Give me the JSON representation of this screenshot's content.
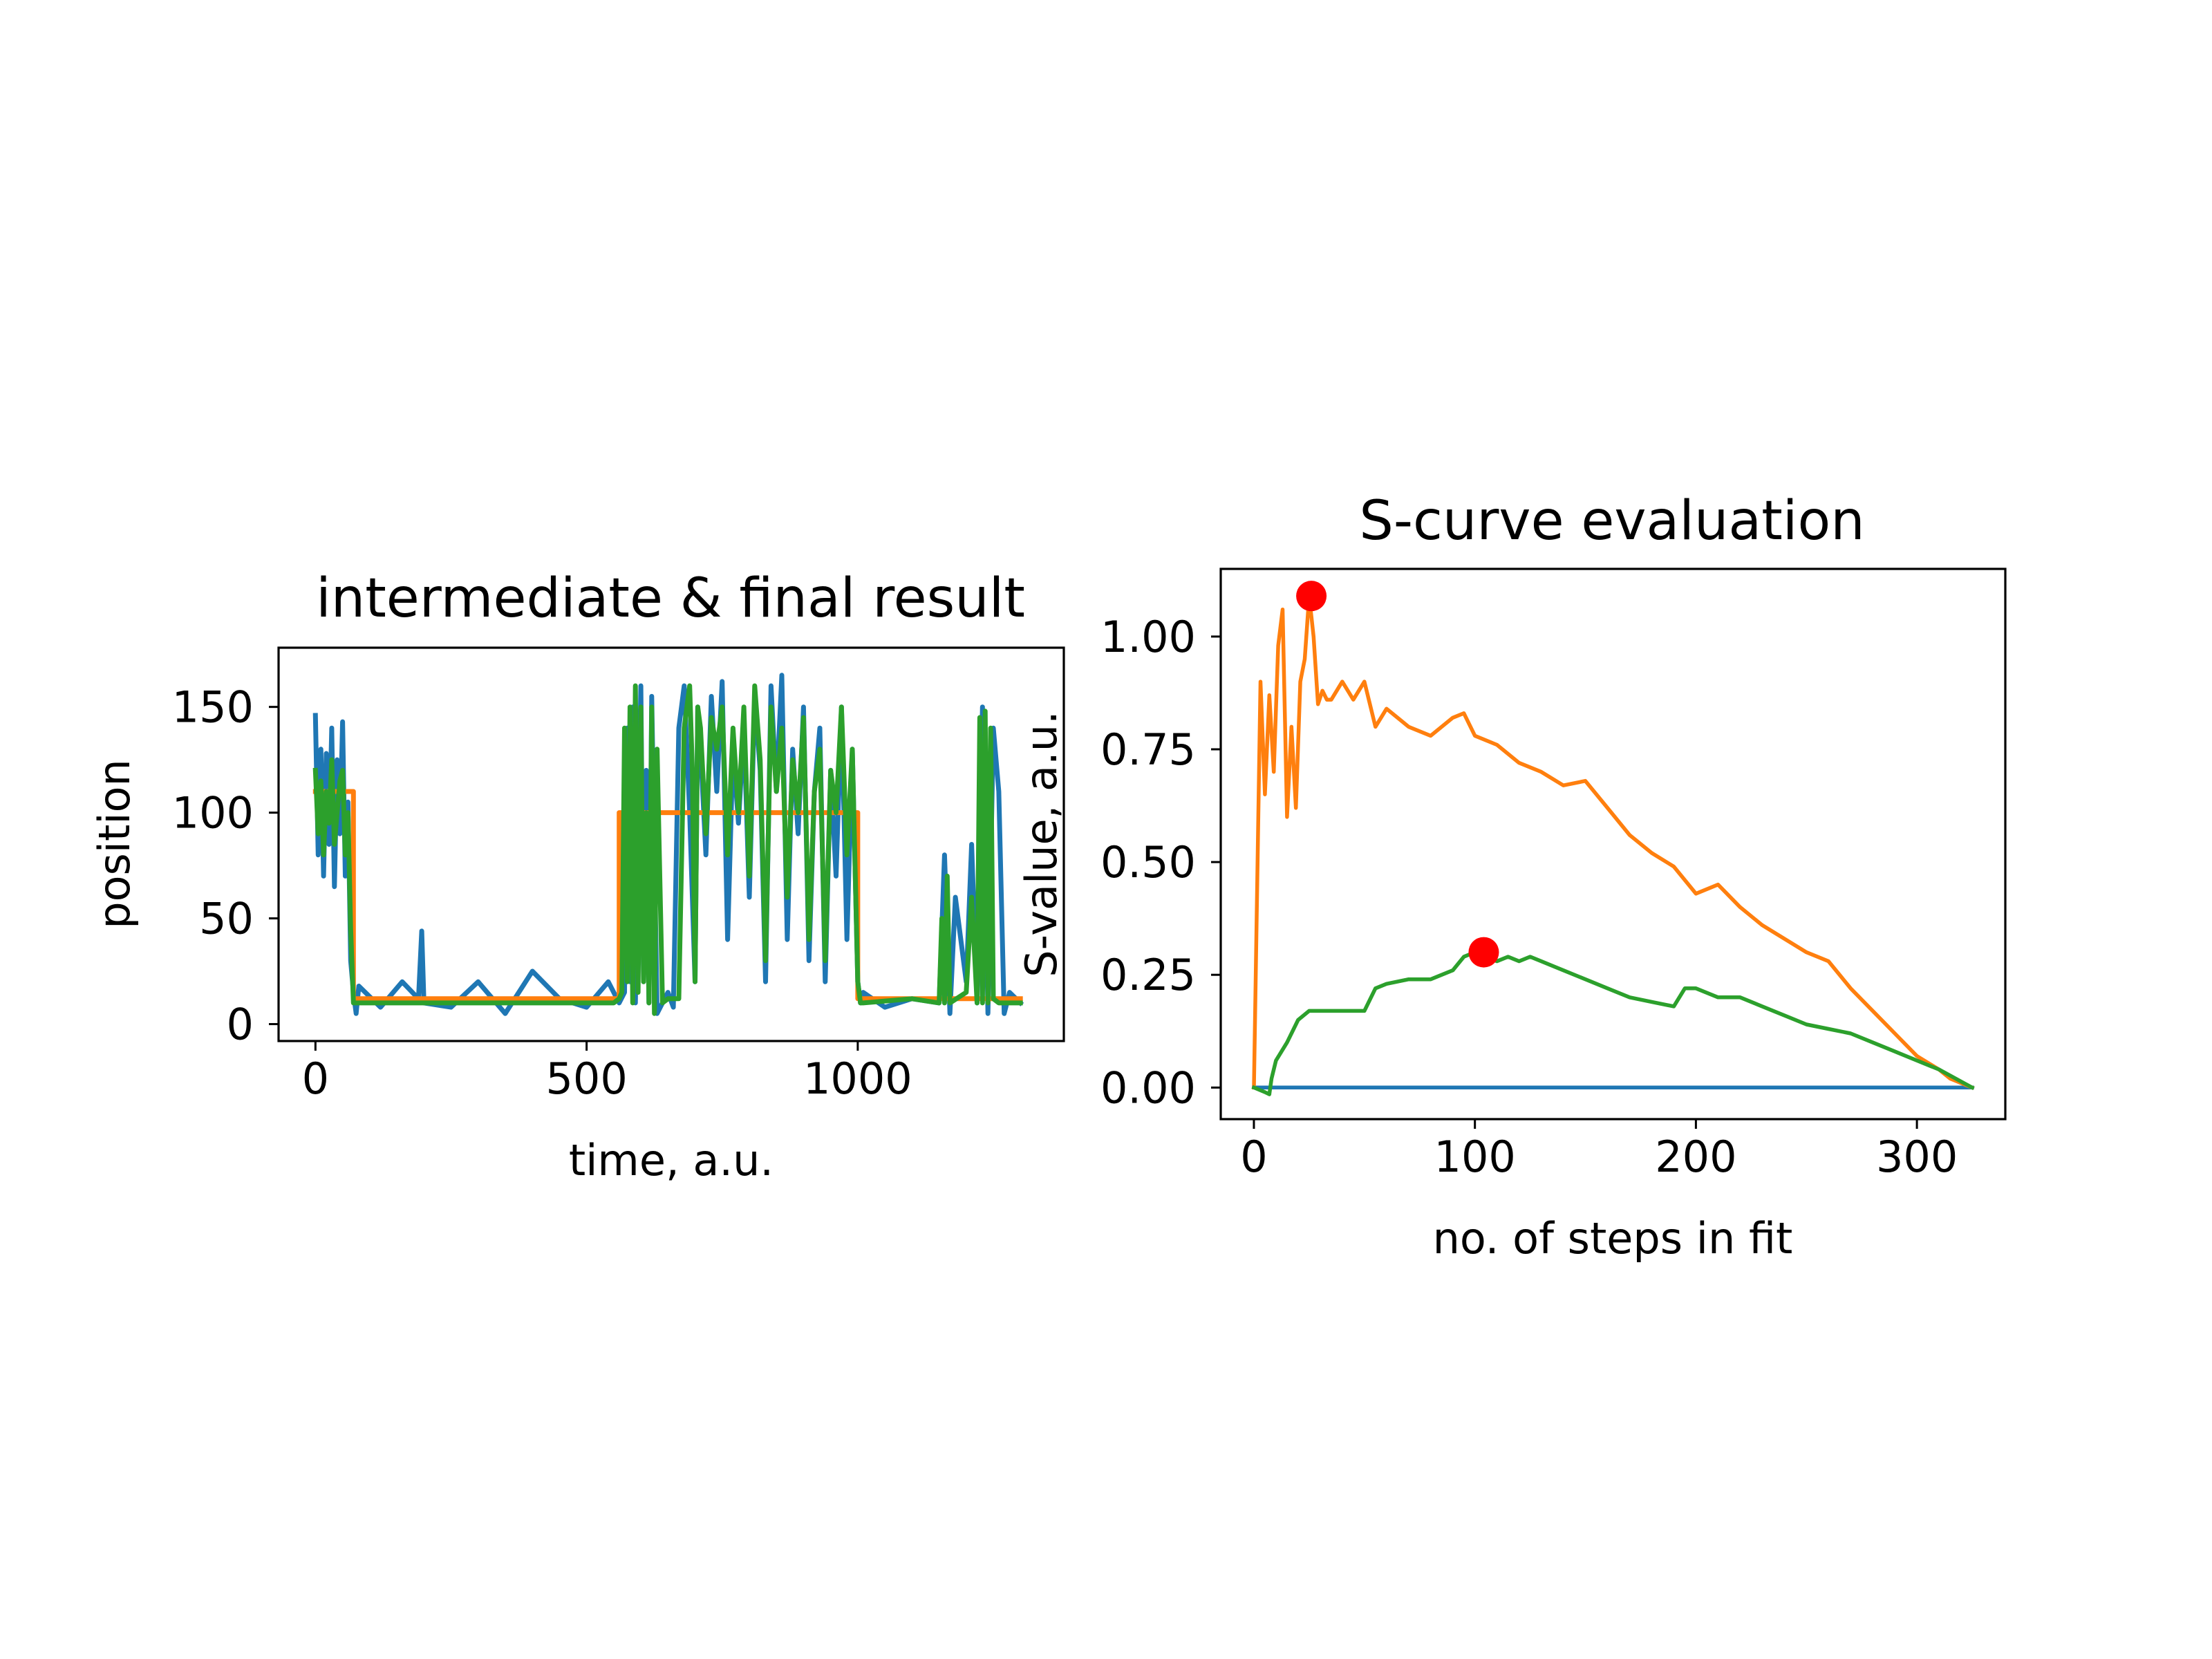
{
  "chart_data": [
    {
      "type": "line",
      "title": "intermediate & final result",
      "xlabel": "time, a.u.",
      "ylabel": "position",
      "xlim": [
        -68,
        1380
      ],
      "ylim": [
        -8,
        178
      ],
      "xticks": [
        0,
        500,
        1000
      ],
      "yticks": [
        0,
        50,
        100,
        150
      ],
      "grid": false,
      "series": [
        {
          "color": "#1f77b4",
          "kind": "raw-signal",
          "x": [
            0,
            5,
            10,
            15,
            20,
            25,
            30,
            35,
            40,
            45,
            50,
            55,
            60,
            65,
            70,
            75,
            80,
            120,
            160,
            190,
            196,
            200,
            250,
            300,
            350,
            400,
            450,
            500,
            540,
            560,
            570,
            575,
            580,
            585,
            590,
            600,
            605,
            610,
            615,
            620,
            630,
            640,
            650,
            660,
            670,
            680,
            690,
            700,
            705,
            710,
            720,
            730,
            740,
            750,
            760,
            770,
            780,
            790,
            800,
            810,
            820,
            830,
            840,
            850,
            860,
            870,
            880,
            890,
            900,
            910,
            920,
            930,
            940,
            950,
            960,
            970,
            980,
            990,
            1000,
            1005,
            1010,
            1050,
            1100,
            1150,
            1160,
            1170,
            1180,
            1200,
            1210,
            1220,
            1230,
            1240,
            1250,
            1260,
            1270,
            1280,
            1300
          ],
          "y": [
            146,
            80,
            130,
            70,
            128,
            85,
            140,
            65,
            125,
            90,
            143,
            70,
            105,
            30,
            15,
            5,
            18,
            8,
            20,
            12,
            44,
            10,
            8,
            20,
            5,
            25,
            12,
            8,
            20,
            10,
            15,
            140,
            20,
            150,
            10,
            160,
            20,
            120,
            10,
            155,
            5,
            10,
            15,
            8,
            140,
            160,
            100,
            20,
            150,
            130,
            80,
            155,
            110,
            162,
            40,
            130,
            95,
            140,
            60,
            155,
            120,
            20,
            160,
            110,
            165,
            40,
            130,
            90,
            150,
            30,
            110,
            140,
            20,
            120,
            70,
            150,
            40,
            130,
            20,
            10,
            15,
            8,
            12,
            10,
            80,
            5,
            60,
            20,
            85,
            10,
            150,
            5,
            140,
            110,
            5,
            15,
            10
          ]
        },
        {
          "color": "#ff7f0e",
          "kind": "intermediate-fit",
          "x": [
            0,
            70,
            70,
            560,
            560,
            1000,
            1000,
            1300
          ],
          "y": [
            110,
            110,
            12,
            12,
            100,
            100,
            12,
            12
          ]
        },
        {
          "color": "#2ca02c",
          "kind": "final-fit",
          "x": [
            0,
            5,
            10,
            15,
            20,
            25,
            30,
            35,
            40,
            45,
            50,
            55,
            60,
            65,
            70,
            75,
            80,
            200,
            300,
            400,
            450,
            500,
            550,
            560,
            565,
            570,
            575,
            580,
            585,
            590,
            595,
            600,
            605,
            610,
            615,
            620,
            625,
            630,
            640,
            650,
            660,
            670,
            680,
            690,
            695,
            700,
            705,
            710,
            720,
            730,
            740,
            750,
            760,
            770,
            780,
            790,
            800,
            810,
            820,
            830,
            840,
            850,
            860,
            870,
            880,
            890,
            900,
            910,
            920,
            930,
            940,
            950,
            960,
            970,
            980,
            990,
            1000,
            1005,
            1010,
            1100,
            1150,
            1155,
            1160,
            1165,
            1170,
            1200,
            1210,
            1220,
            1225,
            1230,
            1235,
            1240,
            1245,
            1250,
            1260,
            1300
          ],
          "y": [
            120,
            90,
            115,
            80,
            110,
            95,
            125,
            85,
            100,
            115,
            120,
            80,
            100,
            45,
            10,
            10,
            10,
            10,
            10,
            10,
            10,
            10,
            10,
            12,
            15,
            140,
            20,
            150,
            10,
            160,
            15,
            150,
            20,
            100,
            10,
            150,
            5,
            130,
            10,
            12,
            12,
            12,
            140,
            160,
            120,
            20,
            150,
            140,
            90,
            145,
            130,
            150,
            80,
            140,
            100,
            150,
            70,
            160,
            125,
            30,
            150,
            110,
            140,
            60,
            125,
            100,
            145,
            40,
            110,
            130,
            30,
            120,
            100,
            150,
            80,
            130,
            20,
            10,
            10,
            12,
            10,
            50,
            10,
            70,
            10,
            15,
            60,
            10,
            145,
            10,
            148,
            10,
            140,
            12,
            10,
            10
          ]
        }
      ]
    },
    {
      "type": "line",
      "title": "S-curve evaluation",
      "xlabel": "no. of steps in fit",
      "ylabel": "S-value, a.u.",
      "xlim": [
        -15,
        340
      ],
      "ylim": [
        -0.07,
        1.15
      ],
      "xticks": [
        0,
        100,
        200,
        300
      ],
      "yticks": [
        0.0,
        0.25,
        0.5,
        0.75,
        1.0
      ],
      "ytick_labels": [
        "0.00",
        "0.25",
        "0.50",
        "0.75",
        "1.00"
      ],
      "grid": false,
      "series": [
        {
          "color": "#1f77b4",
          "x": [
            0,
            325
          ],
          "y": [
            0,
            0
          ]
        },
        {
          "color": "#ff7f0e",
          "x": [
            0,
            3,
            5,
            7,
            9,
            11,
            13,
            15,
            17,
            19,
            21,
            23,
            25,
            27,
            29,
            31,
            33,
            35,
            40,
            45,
            50,
            55,
            60,
            70,
            80,
            90,
            95,
            100,
            110,
            120,
            130,
            140,
            150,
            160,
            170,
            180,
            190,
            200,
            210,
            220,
            230,
            240,
            250,
            260,
            270,
            280,
            290,
            300,
            310,
            315,
            325
          ],
          "y": [
            0,
            0.9,
            0.65,
            0.87,
            0.7,
            0.98,
            1.06,
            0.6,
            0.8,
            0.62,
            0.9,
            0.95,
            1.09,
            1.0,
            0.85,
            0.88,
            0.86,
            0.86,
            0.9,
            0.86,
            0.9,
            0.8,
            0.84,
            0.8,
            0.78,
            0.82,
            0.83,
            0.78,
            0.76,
            0.72,
            0.7,
            0.67,
            0.68,
            0.62,
            0.56,
            0.52,
            0.49,
            0.43,
            0.45,
            0.4,
            0.36,
            0.33,
            0.3,
            0.28,
            0.22,
            0.17,
            0.12,
            0.07,
            0.04,
            0.02,
            0
          ]
        },
        {
          "color": "#2ca02c",
          "x": [
            0,
            5,
            7,
            8,
            10,
            15,
            20,
            25,
            30,
            40,
            50,
            55,
            60,
            70,
            80,
            90,
            95,
            100,
            105,
            110,
            115,
            120,
            125,
            130,
            140,
            150,
            160,
            170,
            180,
            190,
            195,
            200,
            210,
            220,
            230,
            240,
            250,
            260,
            270,
            280,
            290,
            300,
            310,
            325
          ],
          "y": [
            0,
            -0.01,
            -0.015,
            0.02,
            0.06,
            0.1,
            0.15,
            0.17,
            0.17,
            0.17,
            0.17,
            0.22,
            0.23,
            0.24,
            0.24,
            0.26,
            0.29,
            0.3,
            0.29,
            0.28,
            0.29,
            0.28,
            0.29,
            0.28,
            0.26,
            0.24,
            0.22,
            0.2,
            0.19,
            0.18,
            0.22,
            0.22,
            0.2,
            0.2,
            0.18,
            0.16,
            0.14,
            0.13,
            0.12,
            0.1,
            0.08,
            0.06,
            0.04,
            0
          ]
        },
        {
          "color": "#ff0000",
          "kind": "markers",
          "x": [
            26,
            104
          ],
          "y": [
            1.09,
            0.3
          ]
        }
      ]
    }
  ]
}
